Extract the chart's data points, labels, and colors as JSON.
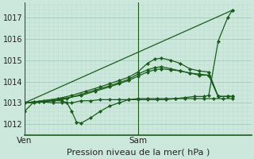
{
  "bg_color": "#cce8dc",
  "grid_color_major": "#aacfbe",
  "grid_color_minor": "#bdddd0",
  "line_color": "#1a5c1a",
  "title": "Pression niveau de la mer( hPa )",
  "xlabel_ven": "Ven",
  "xlabel_sam": "Sam",
  "ylim": [
    1011.5,
    1017.7
  ],
  "yticks": [
    1012,
    1013,
    1014,
    1015,
    1016,
    1017
  ],
  "xlim": [
    0,
    96
  ],
  "ven_x": 0,
  "sam_x": 48,
  "series": [
    {
      "x": [
        0,
        88
      ],
      "y": [
        1013.0,
        1017.35
      ]
    },
    {
      "x": [
        0,
        4,
        8,
        12,
        16,
        20,
        24,
        28,
        32,
        36,
        40,
        44,
        48,
        52,
        56,
        60,
        64,
        68,
        72,
        76,
        78,
        82,
        86,
        88
      ],
      "y": [
        1012.6,
        1013.05,
        1013.05,
        1013.0,
        1013.0,
        1013.0,
        1013.1,
        1013.1,
        1013.15,
        1013.15,
        1013.15,
        1013.15,
        1013.15,
        1013.15,
        1013.15,
        1013.15,
        1013.2,
        1013.25,
        1013.3,
        1013.3,
        1013.35,
        1015.9,
        1017.0,
        1017.35
      ]
    },
    {
      "x": [
        0,
        4,
        8,
        12,
        16,
        18,
        20,
        22,
        24,
        28,
        32,
        36,
        40,
        44,
        48,
        52,
        56,
        60,
        64,
        68,
        72,
        76,
        80,
        84,
        88
      ],
      "y": [
        1013.0,
        1013.0,
        1013.05,
        1013.1,
        1013.1,
        1013.0,
        1012.6,
        1012.1,
        1012.05,
        1012.3,
        1012.6,
        1012.85,
        1013.0,
        1013.15,
        1013.2,
        1013.2,
        1013.2,
        1013.2,
        1013.2,
        1013.2,
        1013.2,
        1013.2,
        1013.2,
        1013.2,
        1013.2
      ]
    },
    {
      "x": [
        0,
        4,
        8,
        14,
        20,
        26,
        32,
        36,
        40,
        44,
        48,
        52,
        55,
        58,
        62,
        66,
        70,
        74,
        78,
        82,
        86,
        88
      ],
      "y": [
        1013.0,
        1013.05,
        1013.1,
        1013.2,
        1013.35,
        1013.55,
        1013.75,
        1013.9,
        1014.05,
        1014.2,
        1014.45,
        1014.85,
        1015.05,
        1015.1,
        1015.0,
        1014.85,
        1014.6,
        1014.5,
        1014.45,
        1013.3,
        1013.3,
        1013.3
      ]
    },
    {
      "x": [
        0,
        6,
        12,
        18,
        24,
        30,
        36,
        40,
        44,
        48,
        52,
        55,
        58,
        62,
        66,
        70,
        74,
        78,
        82,
        86,
        88
      ],
      "y": [
        1013.0,
        1013.05,
        1013.1,
        1013.2,
        1013.4,
        1013.6,
        1013.8,
        1013.95,
        1014.1,
        1014.35,
        1014.55,
        1014.65,
        1014.7,
        1014.6,
        1014.5,
        1014.4,
        1014.35,
        1014.3,
        1013.3,
        1013.3,
        1013.3
      ]
    },
    {
      "x": [
        0,
        8,
        16,
        24,
        30,
        36,
        40,
        44,
        48,
        52,
        55,
        58,
        62,
        66,
        70,
        74,
        78,
        82,
        86,
        88
      ],
      "y": [
        1013.0,
        1013.1,
        1013.2,
        1013.35,
        1013.55,
        1013.75,
        1013.9,
        1014.05,
        1014.25,
        1014.45,
        1014.55,
        1014.6,
        1014.55,
        1014.5,
        1014.4,
        1014.3,
        1014.3,
        1013.3,
        1013.3,
        1013.3
      ]
    }
  ]
}
